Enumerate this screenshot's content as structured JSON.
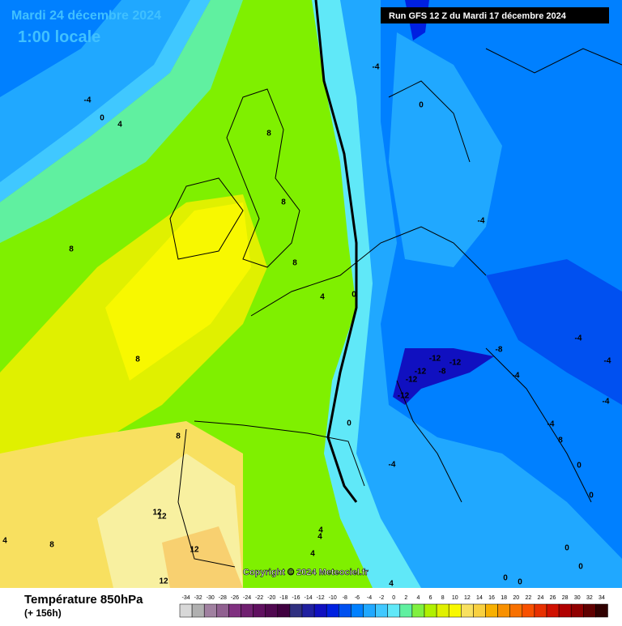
{
  "header": {
    "title": "Mardi 24 décembre 2024",
    "subtitle": "1:00 locale",
    "run": "Run GFS 12 Z du Mardi 17 décembre 2024",
    "copyright": "Copyright © 2024 Meteociel.fr"
  },
  "map": {
    "contour_labels": [
      -4,
      0,
      4,
      8,
      8,
      8,
      8,
      4,
      0,
      8,
      8,
      0,
      -4,
      0,
      -4,
      -8,
      -12,
      -12,
      -12,
      -8,
      -12,
      -12,
      -4,
      -4,
      -4,
      -4,
      -4,
      8,
      -4,
      0,
      12,
      12,
      4,
      8,
      4,
      4,
      12,
      0,
      0,
      0,
      0,
      0,
      4,
      12,
      4
    ]
  },
  "legend": {
    "title": "Température 850hPa",
    "lead": "(+ 156h)",
    "values": [
      -34,
      -32,
      -30,
      -28,
      -26,
      -24,
      -22,
      -20,
      -18,
      -16,
      -14,
      -12,
      -10,
      -8,
      -6,
      -4,
      -2,
      0,
      2,
      4,
      6,
      8,
      10,
      12,
      14,
      16,
      18,
      20,
      22,
      24,
      26,
      28,
      30,
      32,
      34
    ],
    "colors": [
      "#d8d8d8",
      "#b0b0b0",
      "#a080a0",
      "#906090",
      "#803080",
      "#702070",
      "#601060",
      "#500850",
      "#400040",
      "#303080",
      "#2020a0",
      "#1010c0",
      "#0020e0",
      "#0050f0",
      "#0080ff",
      "#20a8ff",
      "#40c8ff",
      "#60e8f8",
      "#60f0a0",
      "#80f040",
      "#b0f000",
      "#e0f000",
      "#f8f800",
      "#f8e060",
      "#f8d040",
      "#f8b000",
      "#f89000",
      "#f87000",
      "#f85000",
      "#e83000",
      "#d01000",
      "#b00000",
      "#900000",
      "#600000",
      "#300000"
    ]
  }
}
